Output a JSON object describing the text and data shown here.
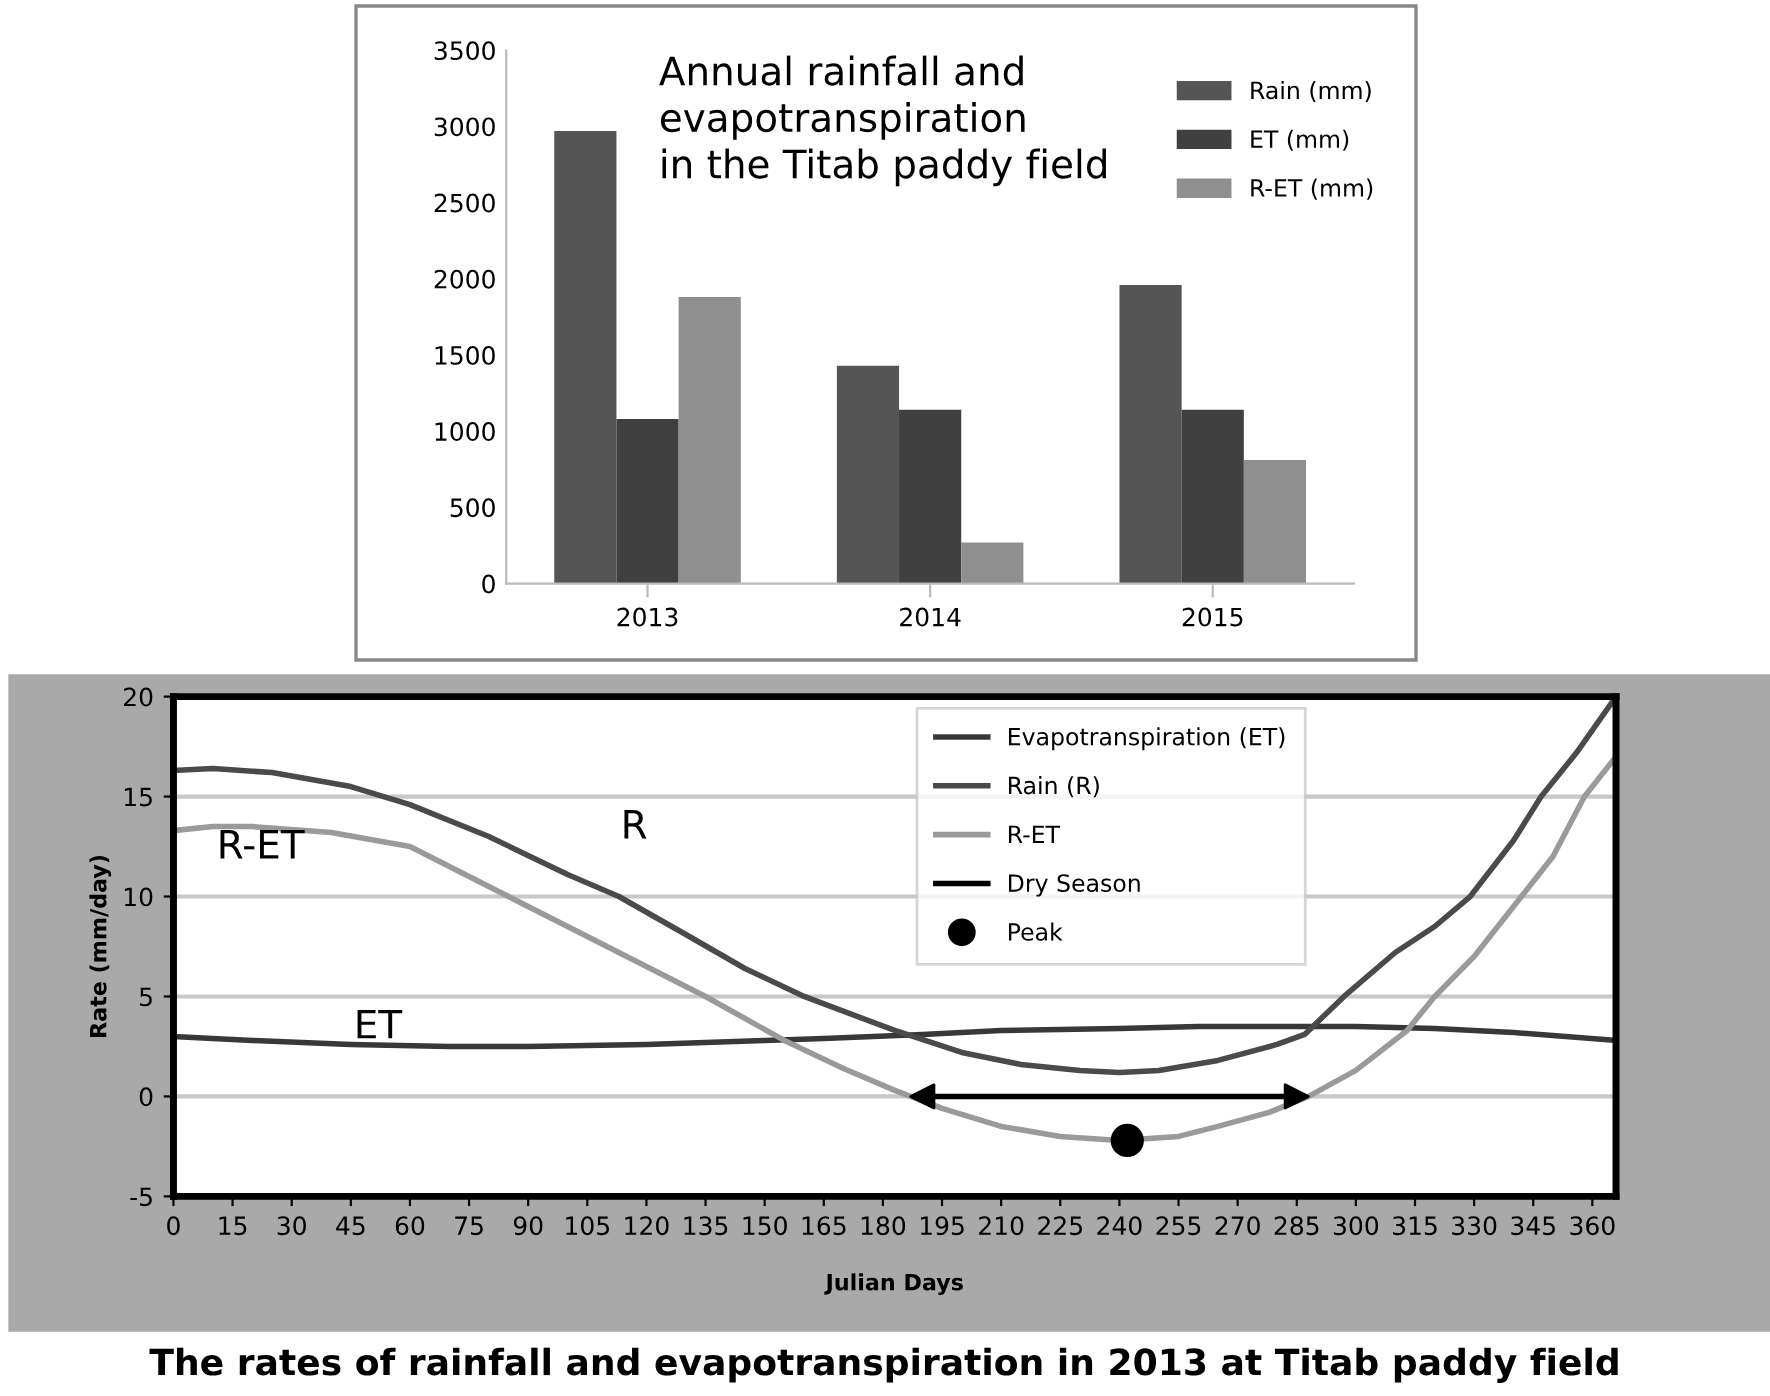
{
  "chart_data": [
    {
      "type": "bar",
      "title": "Annual rainfall and\nevapotranspiration\nin the Titab paddy field",
      "categories": [
        "2013",
        "2014",
        "2015"
      ],
      "series": [
        {
          "name": "Rain (mm)",
          "color": "#555555",
          "values": [
            2970,
            1430,
            1960
          ]
        },
        {
          "name": "ET (mm)",
          "color": "#404040",
          "values": [
            1080,
            1140,
            1140
          ]
        },
        {
          "name": "R-ET (mm)",
          "color": "#8f8f8f",
          "values": [
            1880,
            270,
            810
          ]
        }
      ],
      "ylim": [
        0,
        3500
      ],
      "yticks": [
        0,
        500,
        1000,
        1500,
        2000,
        2500,
        3000,
        3500
      ],
      "grid": false,
      "legend": "top right"
    },
    {
      "type": "line",
      "xlabel": "Julian Days",
      "ylabel": "Rate (mm/day)",
      "xlim": [
        0,
        366
      ],
      "ylim": [
        -5,
        20
      ],
      "xticks": [
        0,
        15,
        30,
        45,
        60,
        75,
        90,
        105,
        120,
        135,
        150,
        165,
        180,
        195,
        210,
        225,
        240,
        255,
        270,
        285,
        300,
        315,
        330,
        345,
        360
      ],
      "yticks": [
        -5,
        0,
        5,
        10,
        15,
        20
      ],
      "grid": "y",
      "legend": "top",
      "marker": "none",
      "line_style": "solid",
      "series": [
        {
          "name": "Evapotranspiration (ET)",
          "color": "#383838",
          "x": [
            0,
            20,
            45,
            70,
            90,
            120,
            150,
            165,
            190,
            210,
            240,
            260,
            280,
            300,
            320,
            340,
            366
          ],
          "values": [
            3.0,
            2.8,
            2.6,
            2.5,
            2.5,
            2.6,
            2.8,
            2.9,
            3.1,
            3.3,
            3.4,
            3.5,
            3.5,
            3.5,
            3.4,
            3.2,
            2.8
          ]
        },
        {
          "name": "Rain (R)",
          "color": "#4a4a4a",
          "x": [
            0,
            10,
            25,
            45,
            60,
            80,
            100,
            113,
            130,
            145,
            160,
            183,
            200,
            215,
            230,
            240,
            250,
            265,
            280,
            287,
            297,
            310,
            320,
            329,
            340,
            347,
            356,
            366
          ],
          "values": [
            16.3,
            16.4,
            16.2,
            15.5,
            14.6,
            13.0,
            11.1,
            10.0,
            8.1,
            6.4,
            5.0,
            3.3,
            2.2,
            1.6,
            1.3,
            1.2,
            1.3,
            1.8,
            2.6,
            3.1,
            5.0,
            7.2,
            8.5,
            10.0,
            12.8,
            15.0,
            17.2,
            20.0
          ]
        },
        {
          "name": "R-ET",
          "color": "#9a9a9a",
          "x": [
            0,
            10,
            20,
            40,
            60,
            85,
            110,
            135,
            155,
            170,
            183,
            195,
            210,
            225,
            240,
            255,
            265,
            278,
            288,
            300,
            313,
            320,
            330,
            342,
            350,
            358,
            366
          ],
          "values": [
            13.3,
            13.5,
            13.5,
            13.2,
            12.5,
            10.0,
            7.5,
            5.0,
            2.8,
            1.4,
            0.3,
            -0.6,
            -1.5,
            -2.0,
            -2.2,
            -2.0,
            -1.5,
            -0.8,
            0.0,
            1.3,
            3.3,
            5.0,
            7.0,
            10.0,
            12.0,
            15.0,
            17.0
          ]
        },
        {
          "type": "line",
          "marker": "triangle",
          "name": "Dry Season",
          "color": "#000000",
          "x": [
            190,
            285
          ],
          "values": [
            0,
            0
          ]
        },
        {
          "type": "scatter",
          "name": "Peak",
          "color": "#000000",
          "marker": "circle",
          "x": [
            242
          ],
          "values": [
            -2.2
          ]
        }
      ],
      "annotations": [
        "R",
        "R-ET",
        "ET",
        "The rates of rainfall and evapotranspiration in 2013 at Titab paddy field"
      ]
    }
  ]
}
